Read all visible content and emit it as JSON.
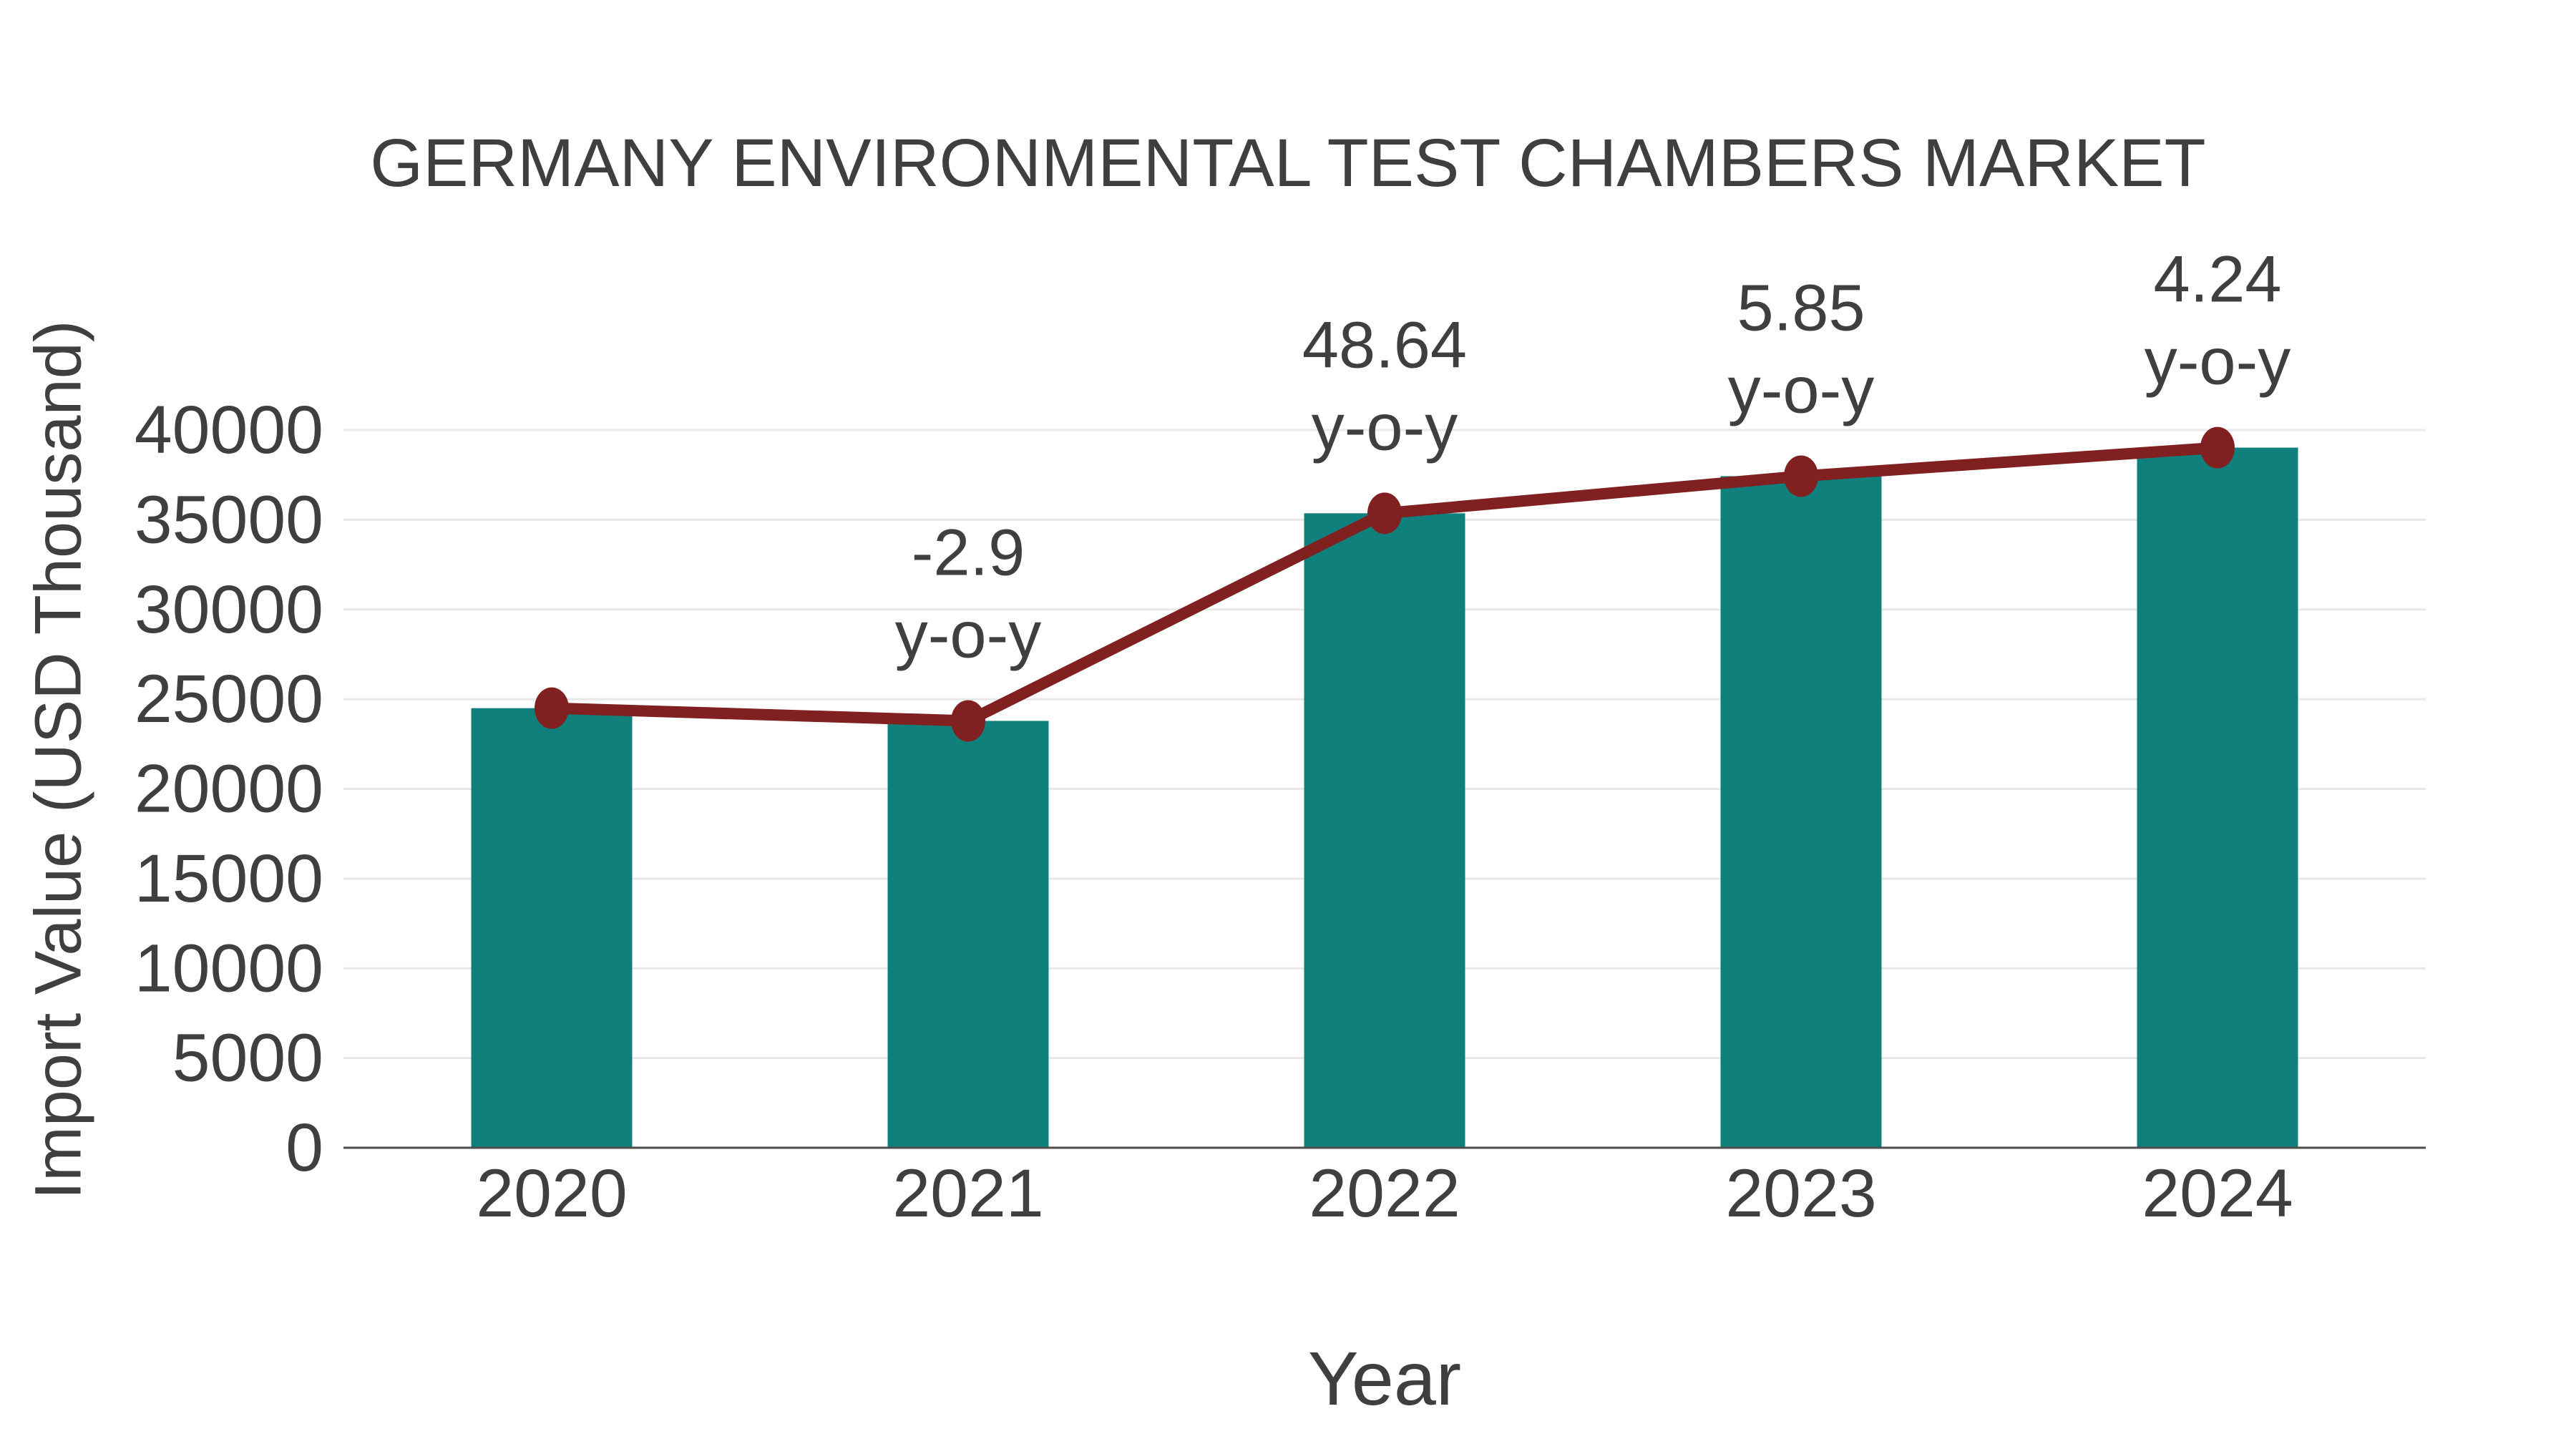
{
  "title": "GERMANY ENVIRONMENTAL TEST CHAMBERS MARKET",
  "colors": {
    "bar": "#10807d",
    "line": "#802020",
    "marker": "#802020",
    "text": "#3f3f3f",
    "grid": "#e8e8e8",
    "axis": "#4d4d4d",
    "background": "#ffffff"
  },
  "chart_data": {
    "type": "bar",
    "overlay": "line",
    "title": "GERMANY ENVIRONMENTAL TEST CHAMBERS MARKET",
    "xlabel": "Year",
    "ylabel": "Import Value (USD Thousand)",
    "categories": [
      "2020",
      "2021",
      "2022",
      "2023",
      "2024"
    ],
    "series": [
      {
        "name": "Import Value",
        "type": "bar",
        "values": [
          24500,
          23790,
          35360,
          37430,
          39020
        ]
      },
      {
        "name": "Import Value trend",
        "type": "line",
        "values": [
          24500,
          23790,
          35360,
          37430,
          39020
        ]
      }
    ],
    "annotations": [
      {
        "category": "2021",
        "value": "-2.9",
        "unit": "y-o-y"
      },
      {
        "category": "2022",
        "value": "48.64",
        "unit": "y-o-y"
      },
      {
        "category": "2023",
        "value": "5.85",
        "unit": "y-o-y"
      },
      {
        "category": "2024",
        "value": "4.24",
        "unit": "y-o-y"
      }
    ],
    "yticks": [
      0,
      5000,
      10000,
      15000,
      20000,
      25000,
      30000,
      35000,
      40000
    ],
    "ylim": [
      0,
      40000
    ],
    "grid": true,
    "legend": false
  }
}
